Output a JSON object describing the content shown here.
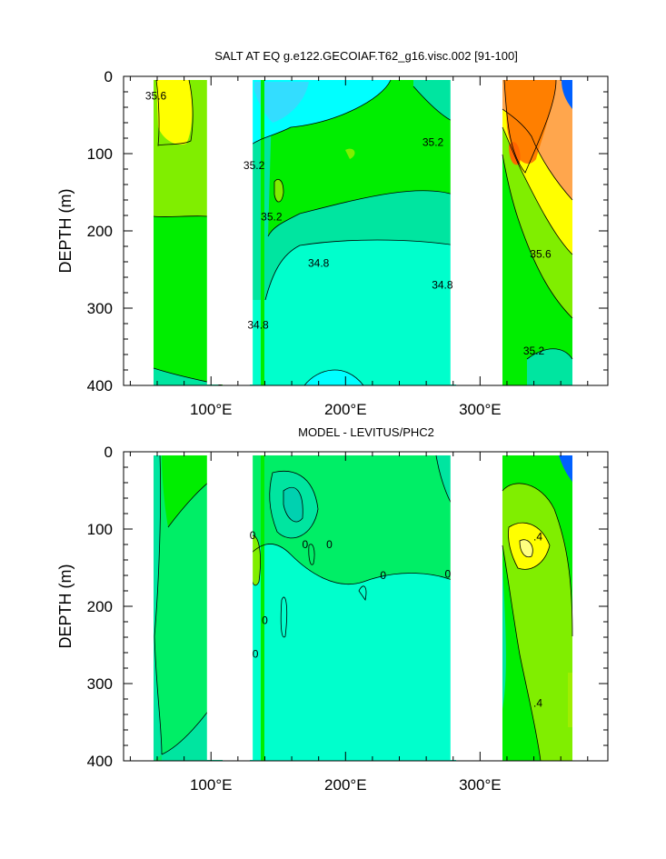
{
  "chart_data": [
    {
      "type": "heatmap",
      "title": "SALT AT EQ g.e122.GECOIAF.T62_g16.visc.002 [91-100]",
      "xlabel": "",
      "ylabel": "DEPTH (m)",
      "xlim": [
        35,
        395
      ],
      "ylim": [
        400,
        0
      ],
      "x_ticks": [
        100,
        200,
        300
      ],
      "x_tick_labels": [
        "100°E",
        "200°E",
        "300°E"
      ],
      "y_ticks": [
        0,
        100,
        200,
        300,
        400
      ],
      "y_tick_labels": [
        "0",
        "100",
        "200",
        "300",
        "400"
      ],
      "land_gaps_lon": [
        [
          97,
          119
        ],
        [
          124,
          131
        ],
        [
          278,
          313
        ],
        [
          370,
          395
        ]
      ],
      "contour_labels": [
        {
          "text": "35.6",
          "lon": 59,
          "depth": 25
        },
        {
          "text": "35.2",
          "lon": 265,
          "depth": 85
        },
        {
          "text": "35.2",
          "lon": 132,
          "depth": 115
        },
        {
          "text": "35.2",
          "lon": 145,
          "depth": 182
        },
        {
          "text": "34.8",
          "lon": 180,
          "depth": 242
        },
        {
          "text": "34.8",
          "lon": 272,
          "depth": 270
        },
        {
          "text": "34.8",
          "lon": 135,
          "depth": 322
        },
        {
          "text": "35.6",
          "lon": 345,
          "depth": 230
        },
        {
          "text": "35.2",
          "lon": 340,
          "depth": 355
        }
      ],
      "colors": {
        "very_low": "#00ffff",
        "low": "#00ffcc",
        "mid_low": "#00e5a0",
        "mid": "#00ee00",
        "mid_high": "#80ee00",
        "high": "#ffff00",
        "higher": "#ffa64d",
        "highest": "#ff7f00",
        "extreme_low": "#0060ff"
      }
    },
    {
      "type": "heatmap",
      "title": "MODEL - LEVITUS/PHC2",
      "xlabel": "",
      "ylabel": "DEPTH (m)",
      "xlim": [
        35,
        395
      ],
      "ylim": [
        400,
        0
      ],
      "x_ticks": [
        100,
        200,
        300
      ],
      "x_tick_labels": [
        "100°E",
        "200°E",
        "300°E"
      ],
      "y_ticks": [
        0,
        100,
        200,
        300,
        400
      ],
      "y_tick_labels": [
        "0",
        "100",
        "200",
        "300",
        "400"
      ],
      "land_gaps_lon": [
        [
          97,
          119
        ],
        [
          124,
          131
        ],
        [
          278,
          313
        ],
        [
          370,
          395
        ]
      ],
      "contour_labels": [
        {
          "text": "0",
          "lon": 131,
          "depth": 108
        },
        {
          "text": "0",
          "lon": 170,
          "depth": 120
        },
        {
          "text": "0",
          "lon": 188,
          "depth": 120
        },
        {
          "text": "0",
          "lon": 228,
          "depth": 160
        },
        {
          "text": "0",
          "lon": 276,
          "depth": 158
        },
        {
          "text": "0",
          "lon": 140,
          "depth": 218
        },
        {
          "text": "0",
          "lon": 133,
          "depth": 262
        },
        {
          "text": ".4",
          "lon": 343,
          "depth": 110
        },
        {
          "text": ".4",
          "lon": 343,
          "depth": 325
        }
      ]
    }
  ]
}
